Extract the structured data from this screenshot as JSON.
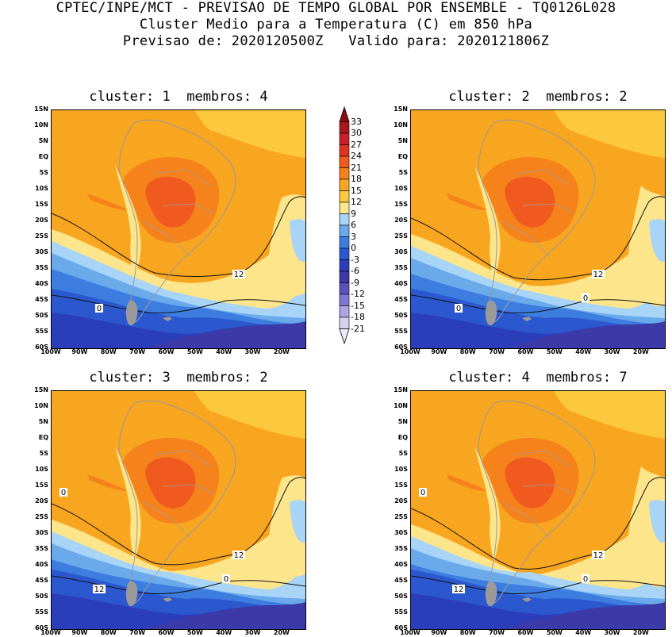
{
  "header": {
    "line1": "CPTEC/INPE/MCT - PREVISAO DE TEMPO GLOBAL POR ENSEMBLE - TQ0126L028",
    "line2": "Cluster Medio para a Temperatura (C) em 850 hPa",
    "line3": "Previsao de: 2020120500Z   Valido para: 2020121806Z"
  },
  "panels": [
    {
      "title": "cluster: 1  membros: 4",
      "contour_labels": [
        "12",
        "0"
      ]
    },
    {
      "title": "cluster: 2  membros: 2",
      "contour_labels": [
        "12",
        "0",
        "0"
      ]
    },
    {
      "title": "cluster: 3  membros: 2",
      "contour_labels": [
        "12",
        "12",
        "0",
        "0"
      ]
    },
    {
      "title": "cluster: 4  membros: 7",
      "contour_labels": [
        "12",
        "12",
        "0",
        "0"
      ]
    }
  ],
  "axes": {
    "lat_labels": [
      "15N",
      "10N",
      "5N",
      "EQ",
      "5S",
      "10S",
      "15S",
      "20S",
      "25S",
      "30S",
      "35S",
      "40S",
      "45S",
      "50S",
      "55S",
      "60S"
    ],
    "lon_labels": [
      "100W",
      "90W",
      "80W",
      "70W",
      "60W",
      "50W",
      "40W",
      "30W",
      "20W"
    ]
  },
  "colorbar": {
    "labels": [
      "33",
      "30",
      "27",
      "24",
      "21",
      "18",
      "15",
      "12",
      "9",
      "6",
      "3",
      "0",
      "-3",
      "-6",
      "-9",
      "-12",
      "-15",
      "-18",
      "-21"
    ],
    "colors": [
      "#8b0d12",
      "#a8171d",
      "#c8202a",
      "#e0341f",
      "#f05a1f",
      "#f6821c",
      "#f8a51f",
      "#fbc83e",
      "#fde58b",
      "#a8d4f7",
      "#6aa9ea",
      "#3d7de0",
      "#2b58cf",
      "#2b3eb9",
      "#3b3aa8",
      "#5a52bf",
      "#8077d2",
      "#aea5e2",
      "#d7d1f1",
      "#efeaf9"
    ]
  }
}
